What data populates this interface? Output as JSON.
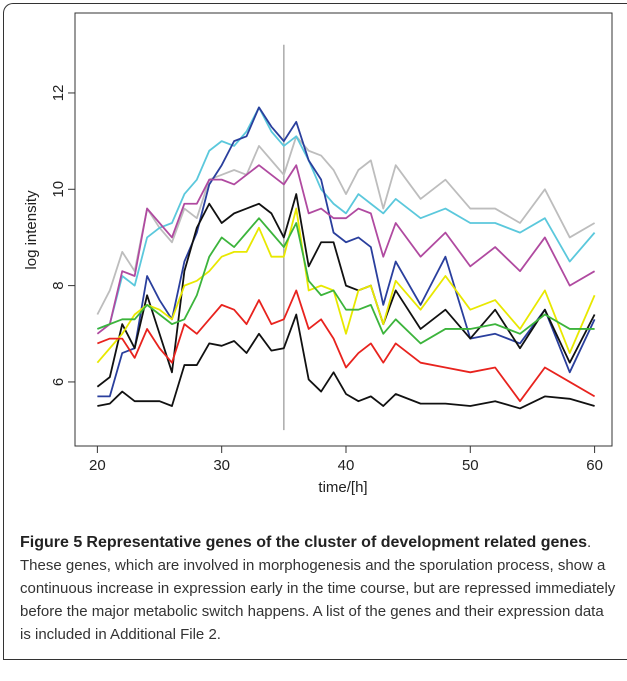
{
  "chart_data": {
    "type": "line",
    "xlabel": "time/[h]",
    "ylabel": "log intensity",
    "x": [
      20,
      21,
      22,
      23,
      24,
      25,
      26,
      27,
      28,
      29,
      30,
      31,
      32,
      33,
      34,
      35,
      36,
      37,
      38,
      39,
      40,
      41,
      42,
      43,
      44,
      46,
      48,
      50,
      52,
      54,
      56,
      58,
      60
    ],
    "series": [
      {
        "color": "#bdbdbd",
        "values": [
          7.4,
          7.9,
          8.7,
          8.3,
          9.6,
          9.2,
          8.9,
          9.6,
          9.4,
          10.2,
          10.3,
          10.4,
          10.3,
          10.9,
          10.6,
          10.3,
          11.1,
          10.8,
          10.7,
          10.4,
          9.9,
          10.4,
          10.6,
          9.6,
          10.5,
          9.8,
          10.2,
          9.6,
          9.6,
          9.3,
          10.0,
          9.0,
          9.3
        ]
      },
      {
        "color": "#5bc8dc",
        "values": [
          7.1,
          7.2,
          8.2,
          8.0,
          9.0,
          9.2,
          9.3,
          9.9,
          10.2,
          10.8,
          11.0,
          10.9,
          11.2,
          11.7,
          11.2,
          10.9,
          11.1,
          10.6,
          10.0,
          9.7,
          9.5,
          9.9,
          9.7,
          9.5,
          9.8,
          9.4,
          9.6,
          9.3,
          9.3,
          9.1,
          9.4,
          8.5,
          9.1
        ]
      },
      {
        "color": "#2a3f9d",
        "values": [
          5.7,
          5.7,
          6.6,
          6.7,
          8.2,
          7.7,
          7.3,
          8.5,
          9.1,
          10.1,
          10.5,
          11.0,
          11.1,
          11.7,
          11.3,
          11.0,
          11.4,
          10.6,
          10.2,
          9.1,
          8.9,
          9.0,
          8.8,
          7.6,
          8.5,
          7.6,
          8.6,
          6.9,
          7.0,
          6.8,
          7.5,
          6.2,
          7.3
        ]
      },
      {
        "color": "#b04aa0",
        "values": [
          7.0,
          7.2,
          8.3,
          8.2,
          9.6,
          9.3,
          9.0,
          9.7,
          9.7,
          10.2,
          10.2,
          10.1,
          10.3,
          10.5,
          10.3,
          10.1,
          10.5,
          9.5,
          9.6,
          9.4,
          9.4,
          9.6,
          9.5,
          8.6,
          9.3,
          8.6,
          9.1,
          8.4,
          8.8,
          8.3,
          9.0,
          8.0,
          8.3
        ]
      },
      {
        "color": "#111111",
        "values": [
          5.9,
          6.1,
          7.2,
          6.7,
          7.8,
          7.0,
          6.2,
          8.3,
          9.2,
          9.7,
          9.3,
          9.5,
          9.6,
          9.7,
          9.5,
          9.0,
          9.9,
          8.4,
          8.9,
          8.9,
          8.0,
          7.9,
          8.0,
          7.2,
          7.9,
          7.1,
          7.5,
          6.9,
          7.5,
          6.7,
          7.5,
          6.4,
          7.4
        ]
      },
      {
        "color": "#e8e800",
        "values": [
          6.4,
          6.7,
          7.0,
          7.4,
          7.6,
          7.5,
          7.3,
          8.0,
          8.1,
          8.3,
          8.6,
          8.7,
          8.7,
          9.2,
          8.6,
          8.6,
          9.6,
          7.9,
          8.0,
          7.9,
          7.0,
          7.9,
          8.0,
          7.2,
          8.1,
          7.5,
          8.2,
          7.5,
          7.7,
          7.1,
          7.9,
          6.6,
          7.8
        ]
      },
      {
        "color": "#3cb43c",
        "values": [
          7.1,
          7.2,
          7.3,
          7.3,
          7.6,
          7.4,
          7.2,
          7.3,
          7.8,
          8.6,
          9.0,
          8.8,
          9.1,
          9.4,
          9.1,
          8.8,
          9.3,
          8.1,
          7.8,
          7.9,
          7.5,
          7.5,
          7.6,
          7.0,
          7.3,
          6.8,
          7.1,
          7.1,
          7.2,
          7.0,
          7.4,
          7.1,
          7.1
        ]
      },
      {
        "color": "#e8231e",
        "values": [
          6.8,
          6.9,
          6.9,
          6.5,
          7.1,
          6.7,
          6.4,
          7.2,
          7.0,
          7.3,
          7.6,
          7.5,
          7.2,
          7.7,
          7.2,
          7.3,
          7.9,
          7.1,
          7.3,
          6.9,
          6.3,
          6.6,
          6.8,
          6.4,
          6.8,
          6.4,
          6.3,
          6.2,
          6.3,
          5.6,
          6.3,
          6.0,
          5.7
        ]
      },
      {
        "color": "#111111",
        "values": [
          5.5,
          5.55,
          5.8,
          5.6,
          5.6,
          5.6,
          5.5,
          6.35,
          6.35,
          6.8,
          6.75,
          6.85,
          6.6,
          7.0,
          6.65,
          6.7,
          7.4,
          6.05,
          5.8,
          6.2,
          5.75,
          5.6,
          5.7,
          5.5,
          5.75,
          5.55,
          5.55,
          5.5,
          5.6,
          5.45,
          5.7,
          5.65,
          5.5
        ]
      }
    ],
    "reference_line": {
      "x": 35,
      "ymin": 5,
      "ymax": 13,
      "color": "#aaaaaa"
    },
    "xlim": [
      18.2,
      61.4
    ],
    "ylim": [
      4.67,
      13.66
    ],
    "xticks": [
      20,
      30,
      40,
      50,
      60
    ],
    "yticks": [
      6,
      8,
      10,
      12
    ]
  },
  "caption": {
    "label": "Figure 5",
    "title": "Representative genes of the cluster of development related genes",
    "text": ". These genes, which are involved in morphogenesis and the sporulation process, show a continuous increase in expression early in the time course, but are repressed immediately before the major metabolic switch happens. A list of the genes and their expression data is included in Additional File 2."
  }
}
